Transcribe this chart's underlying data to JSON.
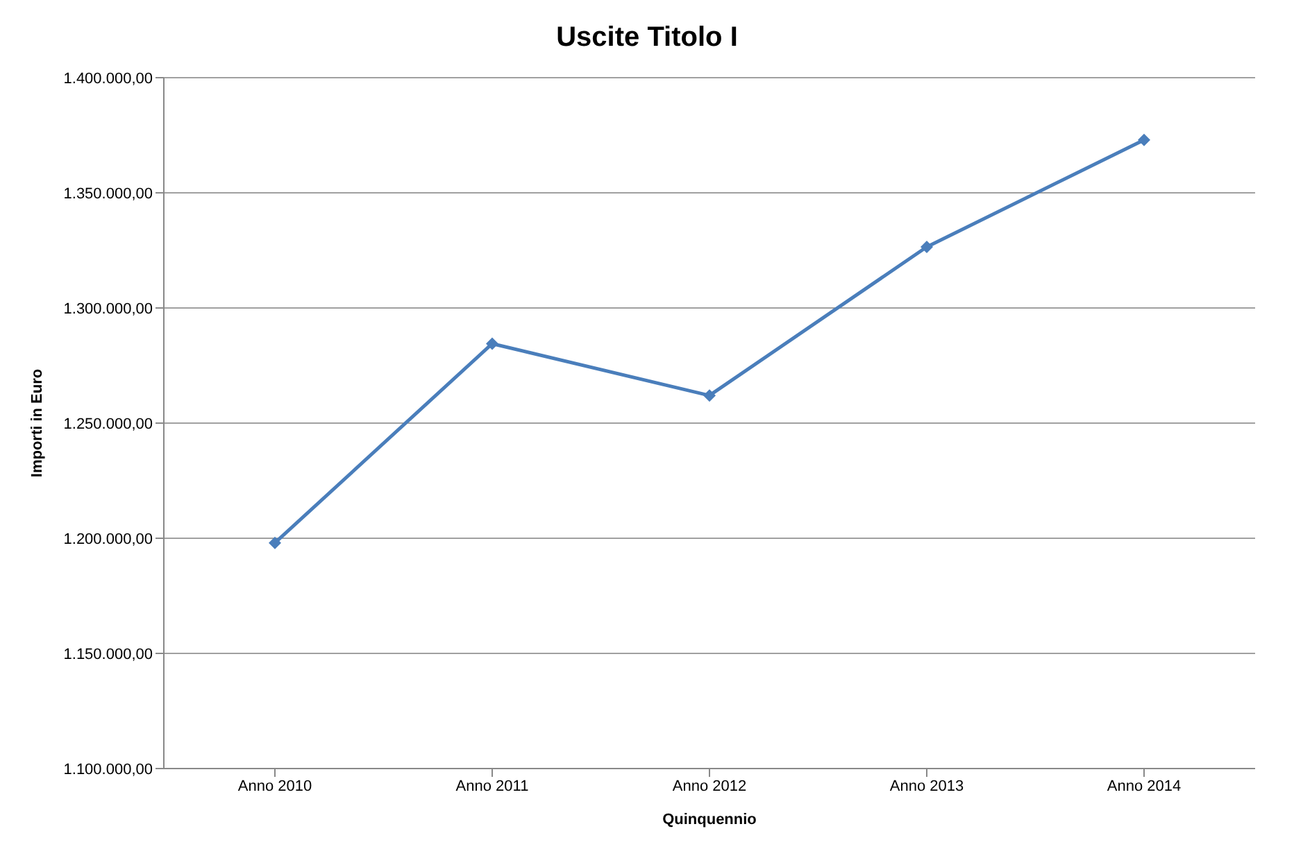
{
  "chart_data": {
    "type": "line",
    "title": "Uscite Titolo I",
    "xlabel": "Quinquennio",
    "ylabel": "Importi in Euro",
    "categories": [
      "Anno 2010",
      "Anno 2011",
      "Anno 2012",
      "Anno 2013",
      "Anno 2014"
    ],
    "series": [
      {
        "color": "#4a7ebb",
        "values": [
          1198000,
          1284500,
          1262000,
          1326500,
          1373000
        ]
      }
    ],
    "ylim": [
      1100000,
      1400000
    ],
    "yticks": [
      {
        "value": 1100000,
        "label": "1.100.000,00"
      },
      {
        "value": 1150000,
        "label": "1.150.000,00"
      },
      {
        "value": 1200000,
        "label": "1.200.000,00"
      },
      {
        "value": 1250000,
        "label": "1.250.000,00"
      },
      {
        "value": 1300000,
        "label": "1.300.000,00"
      },
      {
        "value": 1350000,
        "label": "1.350.000,00"
      },
      {
        "value": 1400000,
        "label": "1.400.000,00"
      }
    ],
    "grid": "y",
    "marker": "diamond",
    "line_style": "solid",
    "legend": false
  }
}
